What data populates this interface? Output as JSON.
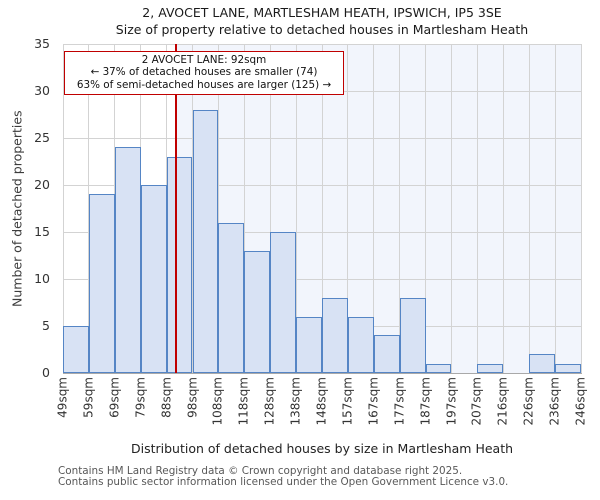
{
  "title_line1": "2, AVOCET LANE, MARTLESHAM HEATH, IPSWICH, IP5 3SE",
  "title_line2": "Size of property relative to detached houses in Martlesham Heath",
  "annotation": {
    "line1": "2 AVOCET LANE: 92sqm",
    "line2": "← 37% of detached houses are smaller (74)",
    "line3": "63% of semi-detached houses are larger (125) →"
  },
  "chart_data": {
    "type": "bar",
    "title": "Size of property relative to detached houses in Martlesham Heath",
    "xlabel": "Distribution of detached houses by size in Martlesham Heath",
    "ylabel": "Number of detached properties",
    "bin_edges_sqm": [
      49,
      59,
      69,
      79,
      88,
      98,
      108,
      118,
      128,
      138,
      148,
      157,
      167,
      177,
      187,
      197,
      207,
      216,
      226,
      236,
      246
    ],
    "bin_labels": [
      "49sqm",
      "59sqm",
      "69sqm",
      "79sqm",
      "88sqm",
      "98sqm",
      "108sqm",
      "118sqm",
      "128sqm",
      "138sqm",
      "148sqm",
      "157sqm",
      "167sqm",
      "177sqm",
      "187sqm",
      "197sqm",
      "207sqm",
      "216sqm",
      "226sqm",
      "236sqm",
      "246sqm"
    ],
    "values": [
      5,
      19,
      24,
      20,
      23,
      28,
      16,
      13,
      15,
      6,
      8,
      6,
      4,
      8,
      1,
      0,
      1,
      0,
      2,
      1
    ],
    "ylim": [
      0,
      35
    ],
    "yticks": [
      0,
      5,
      10,
      15,
      20,
      25,
      30,
      35
    ],
    "marker_value_sqm": 92,
    "grid": true,
    "legend": null
  },
  "footer": {
    "line1": "Contains HM Land Registry data © Crown copyright and database right 2025.",
    "line2": "Contains public sector information licensed under the Open Government Licence v3.0."
  },
  "colors": {
    "bar_fill": "#d8e2f4",
    "bar_edge": "#5585c5",
    "marker_line": "#c00000",
    "annotation_border": "#c00000",
    "shade_bg": "#f2f5fc",
    "grid": "#d3d3d3",
    "axis_line": "#a9a9a9"
  }
}
